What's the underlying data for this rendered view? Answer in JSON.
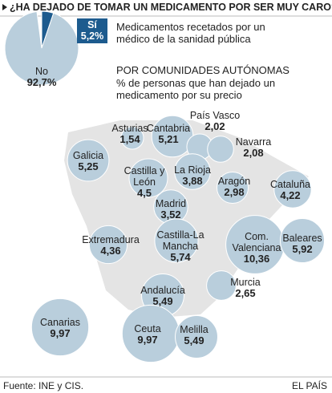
{
  "chart_data": [
    {
      "type": "pie",
      "title": "¿HA DEJADO DE TOMAR UN MEDICAMENTO POR SER MUY CARO?",
      "subtitle": "Medicamentos recetados por un médico de la sanidad pública",
      "categories": [
        "Sí",
        "No"
      ],
      "values": [
        5.2,
        92.7
      ],
      "value_labels": [
        "5,2%",
        "92,7%"
      ],
      "colors": [
        "#1d5b8e",
        "#b9cedc"
      ]
    },
    {
      "type": "bubble_map",
      "title": "POR COMUNIDADES AUTÓNOMAS",
      "subtitle": "% de personas que han dejado un medicamento por su precio",
      "categories": [
        "Asturias",
        "Cantabria",
        "País Vasco",
        "Navarra",
        "Galicia",
        "Castilla y León",
        "La Rioja",
        "Aragón",
        "Cataluña",
        "Madrid",
        "Extremadura",
        "Castilla-La Mancha",
        "Com. Valenciana",
        "Baleares",
        "Andalucía",
        "Murcia",
        "Canarias",
        "Ceuta",
        "Melilla"
      ],
      "values": [
        1.54,
        5.21,
        2.02,
        2.08,
        5.25,
        4.5,
        3.88,
        2.98,
        4.22,
        3.52,
        4.36,
        5.74,
        10.36,
        5.92,
        5.49,
        2.65,
        9.97,
        9.97,
        5.49
      ],
      "value_labels": [
        "1,54",
        "5,21",
        "2,02",
        "2,08",
        "5,25",
        "4,5",
        "3,88",
        "2,98",
        "4,22",
        "3,52",
        "4,36",
        "5,74",
        "10,36",
        "5,92",
        "5,49",
        "2,65",
        "9,97",
        "9,97",
        "5,49"
      ],
      "color": "#b9cedc"
    }
  ],
  "source": "Fuente: INE y CIS.",
  "credit": "EL PAÍS"
}
